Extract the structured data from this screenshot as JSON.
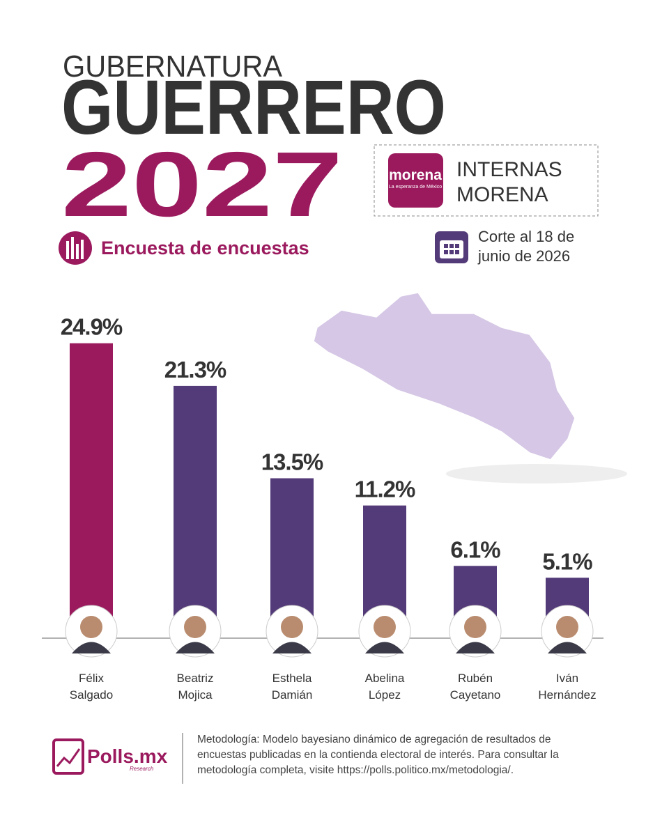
{
  "header": {
    "kicker": "GUBERNATURA",
    "state": "GUERRERO",
    "year": "2027",
    "badge_logo": "morena",
    "badge_logo_tagline": "La esperanza de México",
    "badge_text": "INTERNAS MORENA",
    "section": "Encuesta de encuestas",
    "cutoff": "Corte al 18 de junio de 2026"
  },
  "chart_data": {
    "type": "bar",
    "categories": [
      "Félix Salgado",
      "Beatriz Mojica",
      "Esthela Damián",
      "Abelina López",
      "Rubén Cayetano",
      "Iván Hernández"
    ],
    "values": [
      24.9,
      21.3,
      13.5,
      11.2,
      6.1,
      5.1
    ],
    "value_labels": [
      "24.9%",
      "21.3%",
      "13.5%",
      "11.2%",
      "6.1%",
      "5.1%"
    ],
    "colors": [
      "#9b1a5e",
      "#533a78",
      "#533a78",
      "#533a78",
      "#533a78",
      "#533a78"
    ],
    "ylim": [
      0,
      30
    ]
  },
  "footer": {
    "brand": "Polls.mx",
    "brand_sub": "Research",
    "methodology": "Metodología: Modelo bayesiano dinámico de agregación de resultados de encuestas publicadas en la contienda electoral de interés. Para consultar la metodología completa, visite https://polls.politico.mx/metodologia/."
  }
}
